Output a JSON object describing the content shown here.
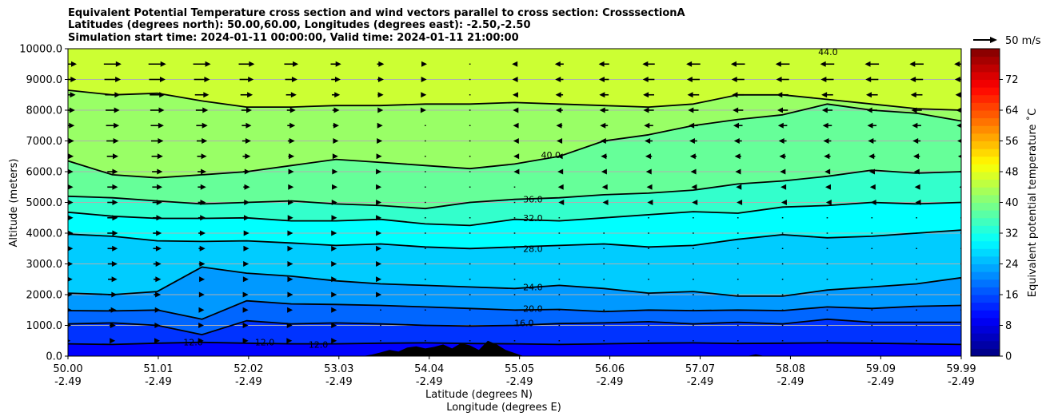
{
  "title_lines": [
    "Equivalent Potential Temperature cross section and wind vectors parallel to cross section: CrosssectionA",
    "Latitudes (degrees north): 50.00,60.00, Longitudes (degrees east): -2.50,-2.50",
    "Simulation start time: 2024-01-11 00:00:00, Valid time: 2024-01-11 21:00:00"
  ],
  "chart_data": {
    "type": "heatmap",
    "xlabel": "Latitude (degrees N)",
    "xlabel2": "Longitude (degrees E)",
    "ylabel": "Altitude (meters)",
    "ylim": [
      0,
      10000
    ],
    "xlim": [
      50.0,
      59.99
    ],
    "x_ticks": [
      {
        "lat": "50.00",
        "lon": "-2.49",
        "value": 50.0
      },
      {
        "lat": "51.01",
        "lon": "-2.49",
        "value": 51.01
      },
      {
        "lat": "52.02",
        "lon": "-2.49",
        "value": 52.02
      },
      {
        "lat": "53.03",
        "lon": "-2.49",
        "value": 53.03
      },
      {
        "lat": "54.04",
        "lon": "-2.49",
        "value": 54.04
      },
      {
        "lat": "55.05",
        "lon": "-2.49",
        "value": 55.05
      },
      {
        "lat": "56.06",
        "lon": "-2.49",
        "value": 56.06
      },
      {
        "lat": "57.07",
        "lon": "-2.49",
        "value": 57.07
      },
      {
        "lat": "58.08",
        "lon": "-2.49",
        "value": 58.08
      },
      {
        "lat": "59.09",
        "lon": "-2.49",
        "value": 59.09
      },
      {
        "lat": "59.99",
        "lon": "-2.49",
        "value": 59.99
      }
    ],
    "y_ticks": [
      "0.0",
      "1000.0",
      "2000.0",
      "3000.0",
      "4000.0",
      "5000.0",
      "6000.0",
      "7000.0",
      "8000.0",
      "9000.0",
      "10000.0"
    ],
    "grid": true,
    "colorbar": {
      "label": "Equivalent potential temperature ˚C",
      "ticks": [
        "0",
        "8",
        "16",
        "24",
        "32",
        "40",
        "48",
        "56",
        "64",
        "72"
      ],
      "range": [
        0,
        80
      ],
      "colormap": "jet"
    },
    "quiver_key": "50 m/s",
    "contours": [
      {
        "level": 12,
        "label": "12.0",
        "alts": [
          400,
          380,
          420,
          450,
          420,
          400,
          400,
          420,
          430,
          410,
          400,
          380,
          400,
          420,
          430,
          410,
          420,
          430,
          420,
          400,
          380
        ]
      },
      {
        "level": 16,
        "label": "16.0",
        "alts": [
          1050,
          1080,
          1000,
          700,
          1150,
          1050,
          1080,
          1050,
          1000,
          980,
          1000,
          1060,
          1080,
          1120,
          1050,
          1100,
          1050,
          1200,
          1100,
          1100,
          1100
        ]
      },
      {
        "level": 20,
        "label": "20.0",
        "alts": [
          1480,
          1470,
          1500,
          1200,
          1800,
          1700,
          1680,
          1650,
          1600,
          1550,
          1500,
          1520,
          1450,
          1500,
          1480,
          1500,
          1480,
          1600,
          1550,
          1620,
          1650
        ]
      },
      {
        "level": 24,
        "label": "24.0",
        "alts": [
          2050,
          2000,
          2100,
          2900,
          2700,
          2600,
          2450,
          2350,
          2300,
          2250,
          2200,
          2300,
          2200,
          2050,
          2100,
          1950,
          1950,
          2150,
          2250,
          2350,
          2550
        ]
      },
      {
        "level": 28,
        "label": "28.0",
        "alts": [
          3970,
          3900,
          3750,
          3730,
          3750,
          3680,
          3600,
          3650,
          3550,
          3500,
          3550,
          3600,
          3650,
          3550,
          3600,
          3800,
          3950,
          3850,
          3900,
          4000,
          4100
        ]
      },
      {
        "level": 32,
        "label": "32.0",
        "alts": [
          4680,
          4550,
          4480,
          4480,
          4500,
          4400,
          4400,
          4450,
          4300,
          4250,
          4450,
          4400,
          4500,
          4600,
          4700,
          4650,
          4850,
          4900,
          5000,
          4950,
          5000
        ]
      },
      {
        "level": 36,
        "label": "36.0",
        "alts": [
          5200,
          5150,
          5050,
          4950,
          5000,
          5050,
          4950,
          4900,
          4800,
          5000,
          5100,
          5150,
          5250,
          5300,
          5400,
          5600,
          5700,
          5850,
          6050,
          5950,
          6000
        ]
      },
      {
        "level": 40,
        "label": "40.0",
        "alts": [
          6350,
          5900,
          5800,
          5900,
          6000,
          6200,
          6400,
          6300,
          6200,
          6100,
          6250,
          6500,
          7000,
          7200,
          7500,
          7700,
          7850,
          8200,
          8000,
          7900,
          7650
        ]
      },
      {
        "level": 44,
        "label": "44.0",
        "alts": [
          8650,
          8500,
          8550,
          8300,
          8100,
          8100,
          8150,
          8150,
          8200,
          8200,
          8250,
          8200,
          8150,
          8100,
          8200,
          8500,
          8500,
          8350,
          8200,
          8050,
          8000
        ]
      }
    ],
    "contour_label_positions": [
      {
        "label": "40.0",
        "lat": 55.4,
        "alt": 6550
      },
      {
        "label": "36.0",
        "lat": 55.2,
        "alt": 5100
      },
      {
        "label": "32.0",
        "lat": 55.2,
        "alt": 4500
      },
      {
        "label": "28.0",
        "lat": 55.2,
        "alt": 3500
      },
      {
        "label": "24.0",
        "lat": 55.2,
        "alt": 2250
      },
      {
        "label": "20.0",
        "lat": 55.2,
        "alt": 1550
      },
      {
        "label": "16.0",
        "lat": 55.1,
        "alt": 1080
      },
      {
        "label": "12.0",
        "lat": 51.4,
        "alt": 450
      },
      {
        "label": "12.0",
        "lat": 52.2,
        "alt": 450
      },
      {
        "label": "12.0",
        "lat": 52.8,
        "alt": 380
      },
      {
        "label": "44.0",
        "lat": 58.5,
        "alt": 9900
      }
    ],
    "terrain": [
      0,
      0,
      0,
      0,
      0,
      0,
      0,
      0,
      0,
      0,
      0,
      0,
      0,
      0,
      0,
      0,
      0,
      0,
      0,
      0,
      0,
      0,
      0,
      0,
      0,
      0,
      0,
      0,
      0,
      0,
      0,
      0,
      0,
      0,
      50,
      120,
      200,
      150,
      280,
      320,
      250,
      300,
      380,
      250,
      420,
      350,
      200,
      500,
      380,
      200,
      100,
      0,
      0,
      0,
      0,
      0,
      0,
      0,
      0,
      0,
      0,
      0,
      0,
      0,
      0,
      0,
      0,
      0,
      0,
      0,
      0,
      0,
      0,
      0,
      0,
      0,
      0,
      60,
      0,
      0,
      0,
      0,
      0,
      0,
      0,
      0,
      0,
      0,
      0,
      0,
      0,
      0,
      0,
      0,
      0,
      0,
      0,
      0,
      0,
      0,
      0
    ],
    "wind_u_profile": [
      {
        "alt": 9500,
        "u": [
          1.0,
          1.0,
          1.0,
          1.0,
          0.9,
          0.8,
          0.6,
          0.4,
          0.2,
          0,
          -0.3,
          -0.5,
          -0.6,
          -0.7,
          -0.8,
          -0.8,
          -0.8,
          -0.8,
          -0.8,
          -0.8,
          -0.8
        ]
      },
      {
        "alt": 8000,
        "u": [
          0.8,
          0.8,
          0.8,
          0.7,
          0.6,
          0.5,
          0.4,
          0.3,
          0.1,
          0,
          -0.2,
          -0.4,
          -0.5,
          -0.6,
          -0.6,
          -0.6,
          -0.6,
          -0.6,
          -0.6,
          -0.6,
          -0.6
        ]
      },
      {
        "alt": 6000,
        "u": [
          0.6,
          0.6,
          0.6,
          0.5,
          0.4,
          0.3,
          0.2,
          0.1,
          0,
          0,
          -0.1,
          -0.2,
          -0.3,
          -0.3,
          -0.3,
          -0.3,
          -0.3,
          -0.3,
          -0.3,
          -0.3,
          -0.3
        ]
      },
      {
        "alt": 4000,
        "u": [
          0.6,
          0.6,
          0.5,
          0.4,
          0.3,
          0.2,
          0.1,
          0.1,
          0,
          0,
          0,
          0,
          0,
          0,
          0,
          0,
          0,
          0,
          0,
          0,
          0
        ]
      },
      {
        "alt": 2000,
        "u": [
          0.5,
          0.5,
          0.4,
          0.3,
          0.2,
          0.2,
          0.1,
          0.1,
          0,
          0,
          0,
          0,
          0,
          0,
          0,
          0,
          0,
          0,
          0,
          0,
          0
        ]
      },
      {
        "alt": 500,
        "u": [
          0.3,
          0.3,
          0.3,
          0.2,
          0.2,
          0.1,
          0.1,
          0,
          0,
          0,
          0,
          0,
          0,
          0,
          0,
          0,
          0,
          0,
          0,
          0,
          0
        ]
      }
    ]
  }
}
